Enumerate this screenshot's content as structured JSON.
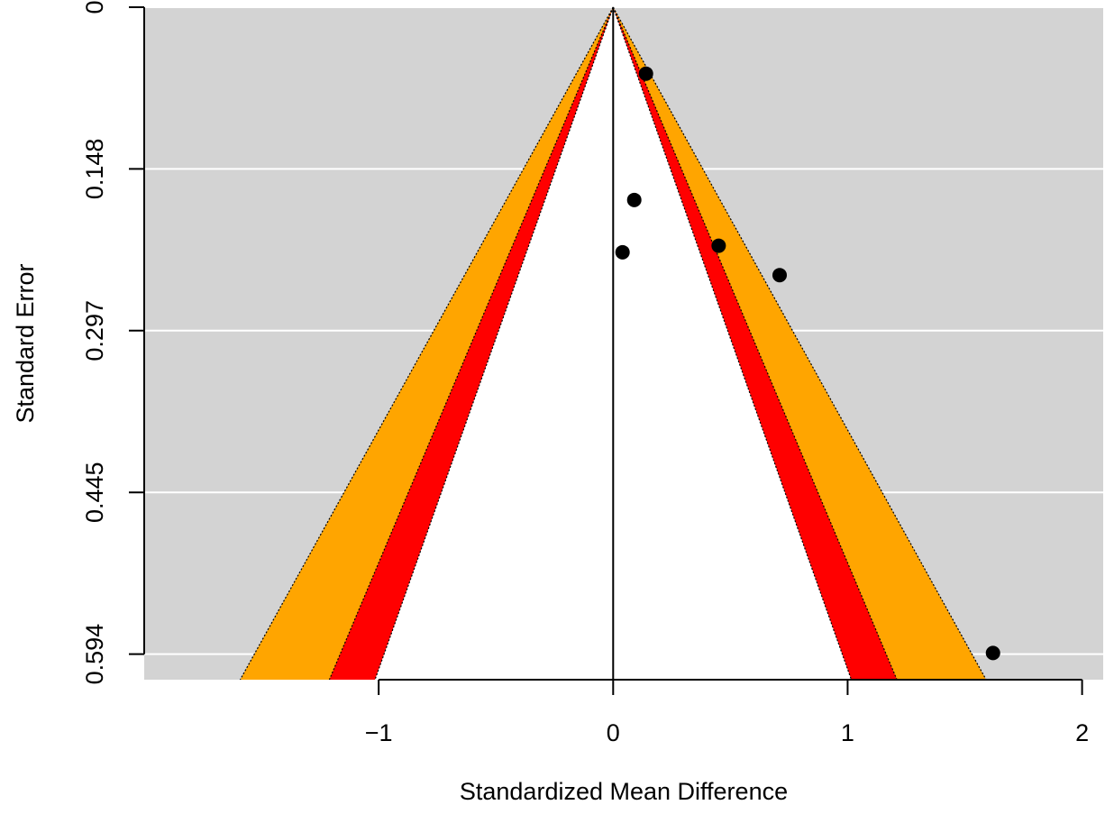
{
  "chart_data": {
    "type": "scatter",
    "subtype": "contour-enhanced funnel plot",
    "xlabel": "Standardized Mean Difference",
    "ylabel": "Standard Error",
    "xlim": [
      -2.0,
      2.09
    ],
    "ylim": [
      0.6175,
      0
    ],
    "y_reversed": true,
    "x_ticks": [
      {
        "value": -1,
        "label": "−1"
      },
      {
        "value": 0,
        "label": "0"
      },
      {
        "value": 1,
        "label": "1"
      },
      {
        "value": 2,
        "label": "2"
      }
    ],
    "y_ticks": [
      {
        "value": 0,
        "label": "0"
      },
      {
        "value": 0.1485,
        "label": "0.148"
      },
      {
        "value": 0.297,
        "label": "0.297"
      },
      {
        "value": 0.4455,
        "label": "0.445"
      },
      {
        "value": 0.594,
        "label": "0.594"
      }
    ],
    "grid": true,
    "grid_axis": "y",
    "center_x": 0,
    "contours": [
      {
        "level": 0.9,
        "z": 1.645,
        "color": "#ffffff"
      },
      {
        "level": 0.95,
        "z": 1.96,
        "color": "#ff0000"
      },
      {
        "level": 0.99,
        "z": 2.576,
        "color": "#ffa500"
      }
    ],
    "points": [
      {
        "x": 0.14,
        "y": 0.061
      },
      {
        "x": 0.09,
        "y": 0.177
      },
      {
        "x": 0.04,
        "y": 0.225
      },
      {
        "x": 0.45,
        "y": 0.219
      },
      {
        "x": 0.71,
        "y": 0.246
      },
      {
        "x": 1.62,
        "y": 0.593
      }
    ],
    "colors": {
      "background": "#d3d3d3",
      "grid": "#ffffff",
      "point": "#000000"
    }
  }
}
